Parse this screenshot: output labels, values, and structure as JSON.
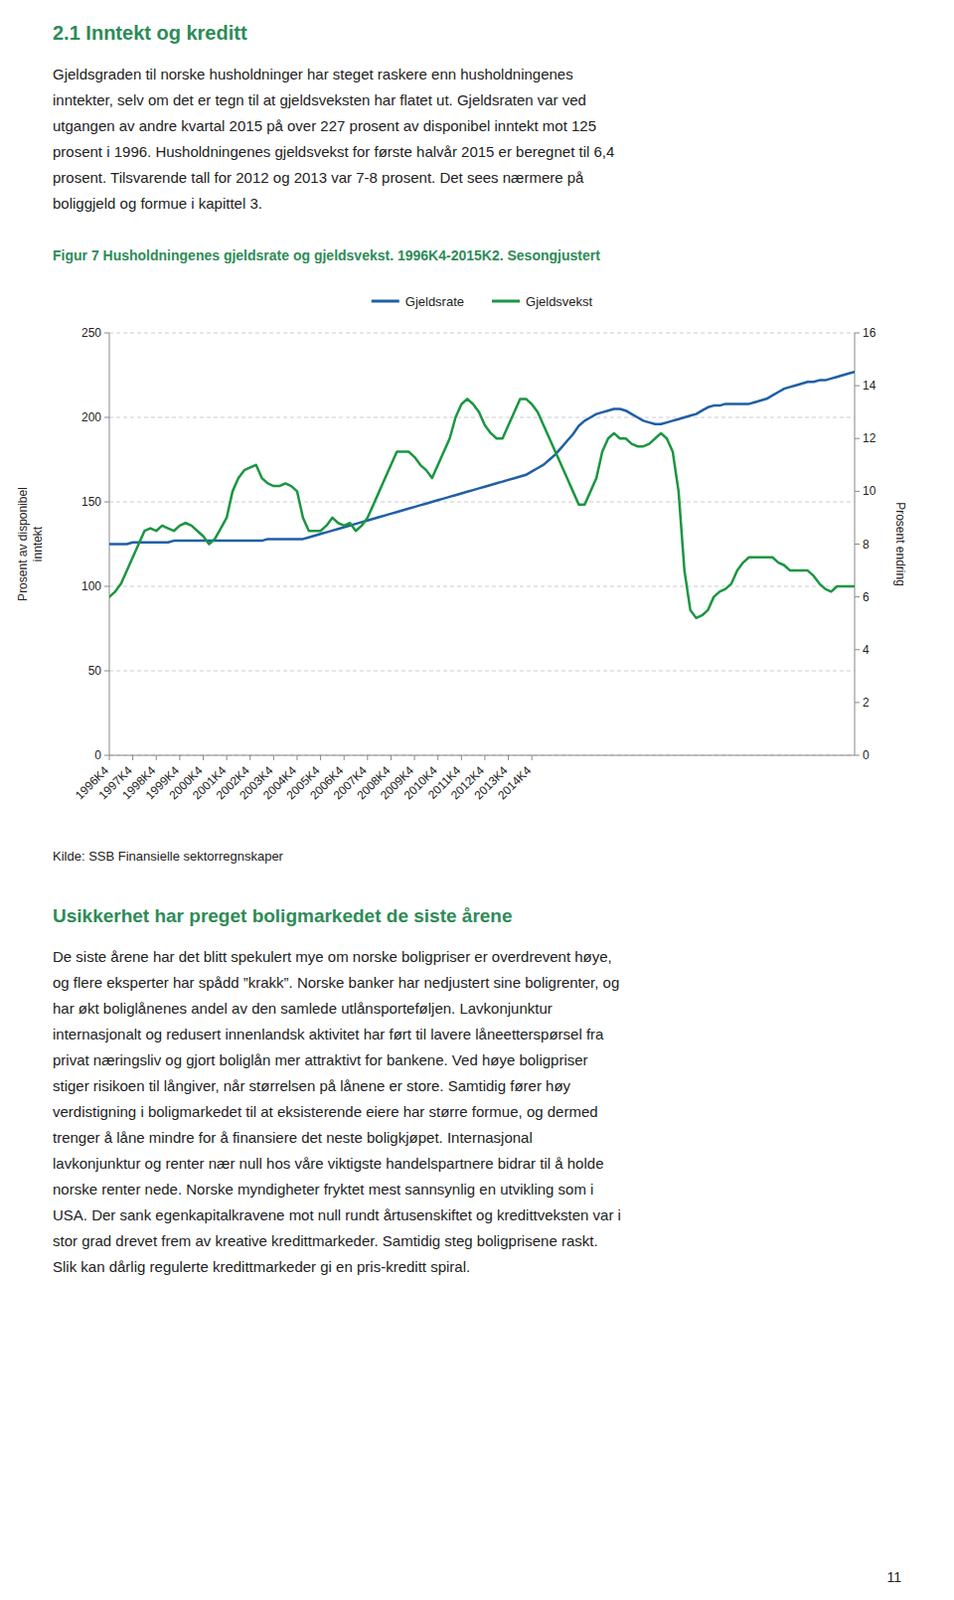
{
  "heading": "2.1 Inntekt og kreditt",
  "body_text": [
    "Gjeldsgraden til norske husholdninger har steget raskere enn husholdningenes",
    "inntekter, selv om det er tegn til at gjeldsveksten har flatet ut. Gjeldsraten var ved",
    "utgangen av andre kvartal 2015 på over 227 prosent av disponibel inntekt mot 125",
    "prosent i 1996. Husholdningenes gjeldsvekst for første halvår 2015 er beregnet til 6,4",
    "prosent. Tilsvarende tall for 2012 og 2013 var 7-8 prosent. Det sees nærmere på",
    "boliggjeld og formue i kapittel 3."
  ],
  "chart_data": {
    "type": "line",
    "title": "Figur 7 Husholdningenes gjeldsrate og gjeldsvekst. 1996K4-2015K2. Sesongjustert",
    "y_label": "Prosent av disponibel\ninntekt",
    "y2_label": "Prosent endring",
    "source": "Kilde: SSB Finansielle sektorregnskaper",
    "categories": [
      "1996K4",
      null,
      null,
      null,
      "1997K4",
      null,
      null,
      null,
      "1998K4",
      null,
      null,
      null,
      "1999K4",
      null,
      null,
      null,
      "2000K4",
      null,
      null,
      null,
      "2001K4",
      null,
      null,
      null,
      "2002K4",
      null,
      null,
      null,
      "2003K4",
      null,
      null,
      null,
      "2004K4",
      null,
      null,
      null,
      "2005K4",
      null,
      null,
      null,
      "2006K4",
      null,
      null,
      null,
      "2007K4",
      null,
      null,
      null,
      "2008K4",
      null,
      null,
      null,
      "2009K4",
      null,
      null,
      null,
      "2010K4",
      null,
      null,
      null,
      "2011K4",
      null,
      null,
      null,
      "2012K4",
      null,
      null,
      null,
      "2013K4",
      null,
      null,
      null,
      "2014K4",
      null,
      null,
      null,
      null,
      null,
      null,
      null,
      null,
      null,
      null,
      null,
      null,
      null,
      null,
      null,
      null,
      null,
      null,
      null,
      null,
      null,
      null,
      null,
      null,
      null,
      null,
      null,
      null,
      null,
      null,
      null,
      null,
      null,
      null,
      null,
      null,
      null,
      null,
      null,
      null,
      null,
      null,
      null,
      null,
      null,
      null,
      null,
      null,
      null,
      null,
      null,
      null,
      null,
      null,
      null
    ],
    "series": [
      {
        "name": "Gjeldsrate",
        "color": "#1f5fa6",
        "values": [
          125,
          125,
          125,
          125,
          126,
          126,
          126,
          126,
          126,
          126,
          126,
          127,
          127,
          127,
          127,
          127,
          127,
          127,
          127,
          127,
          127,
          127,
          127,
          127,
          127,
          127,
          127,
          128,
          128,
          128,
          128,
          128,
          128,
          128,
          129,
          130,
          131,
          132,
          133,
          134,
          135,
          136,
          137,
          138,
          139,
          140,
          141,
          142,
          143,
          144,
          145,
          146,
          147,
          148,
          149,
          150,
          151,
          152,
          153,
          154,
          155,
          156,
          157,
          158,
          159,
          160,
          161,
          162,
          163,
          164,
          165,
          166,
          168,
          170,
          172,
          175,
          178,
          182,
          186,
          190,
          195,
          198,
          200,
          202,
          203,
          204,
          205,
          205,
          204,
          202,
          200,
          198,
          197,
          196,
          196,
          197,
          198,
          199,
          200,
          201,
          202,
          204,
          206,
          207,
          207,
          208,
          208,
          208,
          208,
          208,
          209,
          210,
          211,
          213,
          215,
          217,
          218,
          219,
          220,
          221,
          221,
          222,
          222,
          223,
          224,
          225,
          226,
          227
        ]
      },
      {
        "name": "Gjeldsvekst",
        "color": "#1a9641",
        "axis": "y2",
        "values": [
          6.0,
          6.2,
          6.5,
          7.0,
          7.5,
          8.0,
          8.5,
          8.6,
          8.5,
          8.7,
          8.6,
          8.5,
          8.7,
          8.8,
          8.7,
          8.5,
          8.3,
          8.0,
          8.2,
          8.6,
          9.0,
          10.0,
          10.5,
          10.8,
          10.9,
          11.0,
          10.5,
          10.3,
          10.2,
          10.2,
          10.3,
          10.2,
          10.0,
          9.0,
          8.5,
          8.5,
          8.5,
          8.7,
          9.0,
          8.8,
          8.7,
          8.8,
          8.5,
          8.7,
          9.0,
          9.5,
          10.0,
          10.5,
          11.0,
          11.5,
          11.5,
          11.5,
          11.3,
          11.0,
          10.8,
          10.5,
          11.0,
          11.5,
          12.0,
          12.8,
          13.3,
          13.5,
          13.3,
          13.0,
          12.5,
          12.2,
          12.0,
          12.0,
          12.5,
          13.0,
          13.5,
          13.5,
          13.3,
          13.0,
          12.5,
          12.0,
          11.5,
          11.0,
          10.5,
          10.0,
          9.5,
          9.5,
          10.0,
          10.5,
          11.5,
          12.0,
          12.2,
          12.0,
          12.0,
          11.8,
          11.7,
          11.7,
          11.8,
          12.0,
          12.2,
          12.0,
          11.5,
          10.0,
          7.0,
          5.5,
          5.2,
          5.3,
          5.5,
          6.0,
          6.2,
          6.3,
          6.5,
          7.0,
          7.3,
          7.5,
          7.5,
          7.5,
          7.5,
          7.5,
          7.3,
          7.2,
          7.0,
          7.0,
          7.0,
          7.0,
          6.8,
          6.5,
          6.3,
          6.2,
          6.4,
          6.4,
          6.4,
          6.4
        ]
      }
    ],
    "ylim": [
      0,
      250
    ],
    "yticks": [
      0,
      50,
      100,
      150,
      200,
      250
    ],
    "y2lim": [
      0,
      16
    ],
    "y2ticks": [
      0,
      2,
      4,
      6,
      8,
      10,
      12,
      14,
      16
    ],
    "grid": true,
    "legend": "top"
  },
  "footer_heading": "Usikkerhet har preget boligmarkedet de siste årene",
  "footer_text": [
    "De siste årene har det blitt spekulert mye om norske boligpriser er overdrevent høye,",
    "og flere eksperter har spådd ”krakk”. Norske banker har nedjustert sine boligrenter, og",
    "har økt boliglånenes andel av den samlede utlånsporteføljen. Lavkonjunktur",
    "internasjonalt og redusert innenlandsk aktivitet har ført til lavere låneetterspørsel fra",
    "privat næringsliv og gjort boliglån mer attraktivt for bankene. Ved høye boligpriser",
    "stiger risikoen til långiver, når størrelsen på lånene er store. Samtidig fører høy",
    "verdistigning i boligmarkedet til at eksisterende eiere har større formue, og dermed",
    "trenger å låne mindre for å finansiere det neste boligkjøpet. Internasjonal",
    "lavkonjunktur og renter nær null hos våre viktigste handelspartnere bidrar til å holde",
    "norske renter nede. Norske myndigheter fryktet mest sannsynlig en utvikling som i",
    "USA. Der sank egenkapitalkravene mot null rundt årtusenskiftet og kredittveksten var i",
    "stor grad drevet frem av kreative kredittmarkeder. Samtidig steg boligprisene raskt.",
    "Slik kan dårlig regulerte kredittmarkeder gi en pris-kreditt spiral."
  ],
  "page_number": "11"
}
